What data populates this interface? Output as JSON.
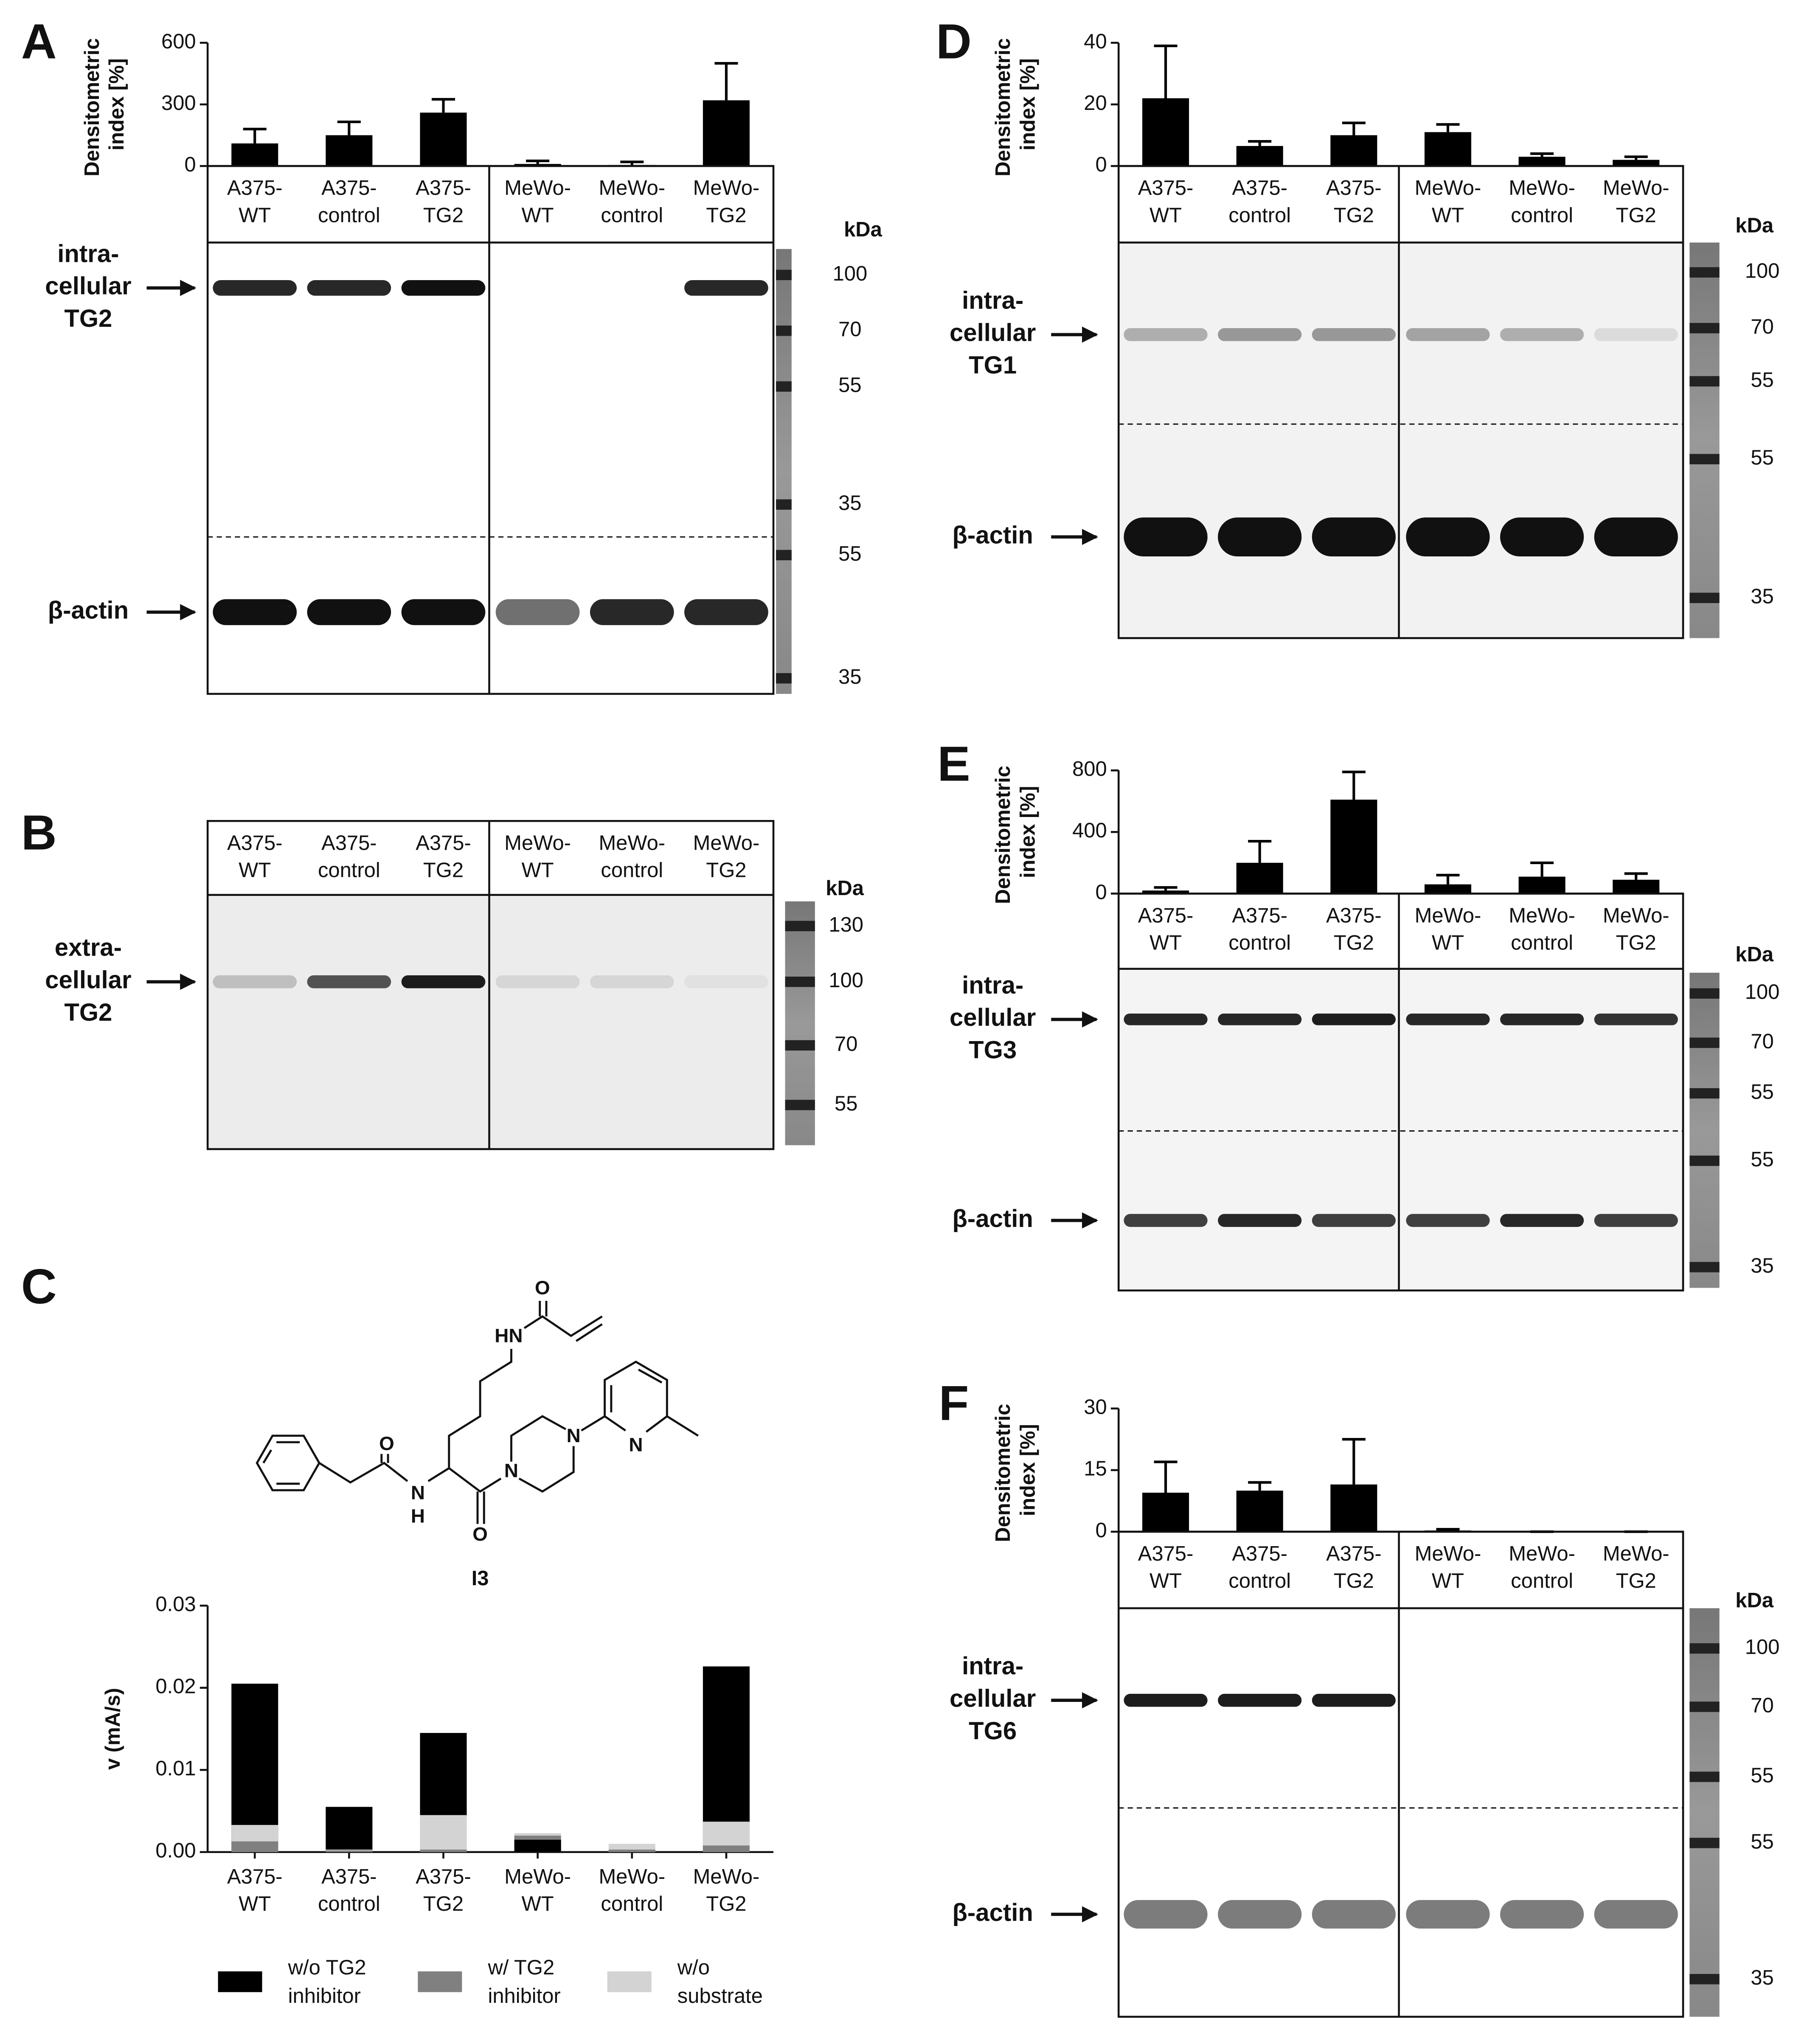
{
  "chart_data": [
    {
      "type": "bar",
      "y_label": "Densitometric index [%]",
      "categories": [
        "A375-WT",
        "A375-control",
        "A375-TG2",
        "MeWo-WT",
        "MeWo-control",
        "MeWo-TG2"
      ],
      "values": [
        110,
        150,
        260,
        10,
        5,
        320
      ],
      "errors": [
        70,
        65,
        65,
        15,
        15,
        180
      ],
      "color": "#000000",
      "ylim": [
        0,
        600
      ],
      "yticks": [
        0,
        300,
        600
      ]
    },
    {
      "type": "bar",
      "y_label": "v (mA/s)",
      "categories": [
        "A375-WT",
        "A375-control",
        "A375-TG2",
        "MeWo-WT",
        "MeWo-control",
        "MeWo-TG2"
      ],
      "series": [
        {
          "name": "w/o TG2 inhibitor",
          "color": "#000000",
          "values": [
            0.0205,
            0.0055,
            0.0145,
            0.0015,
            0,
            0.0226
          ]
        },
        {
          "name": "w/ TG2 inhibitor",
          "color": "#808080",
          "values": [
            0.0013,
            0.0002,
            0.0003,
            0.002,
            0.0003,
            0.0008
          ]
        },
        {
          "name": "w/o substrate",
          "color": "#d3d3d3",
          "values": [
            0.0033,
            0.0003,
            0.0045,
            0.0023,
            0.001,
            0.0037
          ]
        }
      ],
      "ylim": [
        0,
        0.03
      ],
      "yticks": [
        {
          "value": 0,
          "label": "0.00"
        },
        0.01,
        0.02,
        0.03
      ]
    },
    {
      "type": "bar",
      "y_label": "Densitometric index [%]",
      "categories": [
        "A375-WT",
        "A375-control",
        "A375-TG2",
        "MeWo-WT",
        "MeWo-control",
        "MeWo-TG2"
      ],
      "values": [
        22,
        6.5,
        10,
        11,
        3,
        2
      ],
      "errors": [
        17,
        1.5,
        4,
        2.5,
        1,
        1
      ],
      "color": "#000000",
      "ylim": [
        0,
        40
      ],
      "yticks": [
        0,
        20,
        40
      ]
    },
    {
      "type": "bar",
      "y_label": "Densitometric index [%]",
      "categories": [
        "A375-WT",
        "A375-control",
        "A375-TG2",
        "MeWo-WT",
        "MeWo-control",
        "MeWo-TG2"
      ],
      "values": [
        20,
        200,
        610,
        60,
        110,
        90
      ],
      "errors": [
        20,
        140,
        180,
        60,
        90,
        40
      ],
      "color": "#000000",
      "ylim": [
        0,
        800
      ],
      "yticks": [
        0,
        400,
        800
      ]
    },
    {
      "type": "bar",
      "y_label": "Densitometric index [%]",
      "categories": [
        "A375-WT",
        "A375-control",
        "A375-TG2",
        "MeWo-WT",
        "MeWo-control",
        "MeWo-TG2"
      ],
      "values": [
        9.5,
        10,
        11.5,
        0.3,
        0,
        0
      ],
      "errors": [
        7.5,
        2,
        11,
        0.3,
        0,
        0
      ],
      "color": "#000000",
      "ylim": [
        0,
        30
      ],
      "yticks": [
        0,
        15,
        30
      ]
    }
  ],
  "figure": {
    "letters": [
      "A",
      "B",
      "C",
      "D",
      "E",
      "F"
    ],
    "blots": [
      {
        "labels": [
          {
            "lines": [
              "intra-",
              "cellular",
              "TG2"
            ]
          },
          {
            "lines": [
              "β-actin"
            ]
          }
        ],
        "kda": "kDa",
        "markers": [
          100,
          70,
          55,
          35,
          55,
          35
        ]
      },
      {
        "lanes": [
          "A375-WT",
          "A375-control",
          "A375-TG2",
          "MeWo-WT",
          "MeWo-control",
          "MeWo-TG2"
        ],
        "labels": [
          {
            "lines": [
              "extra-",
              "cellular",
              "TG2"
            ]
          }
        ],
        "kda": "kDa",
        "markers": [
          130,
          100,
          70,
          55
        ]
      },
      {
        "labels": [
          {
            "lines": [
              "intra-",
              "cellular",
              "TG1"
            ]
          },
          {
            "lines": [
              "β-actin"
            ]
          }
        ],
        "kda": "kDa",
        "markers": [
          100,
          70,
          55,
          55,
          35
        ]
      },
      {
        "labels": [
          {
            "lines": [
              "intra-",
              "cellular",
              "TG3"
            ]
          },
          {
            "lines": [
              "β-actin"
            ]
          }
        ],
        "kda": "kDa",
        "markers": [
          100,
          70,
          55,
          55,
          35
        ]
      },
      {
        "labels": [
          {
            "lines": [
              "intra-",
              "cellular",
              "TG6"
            ]
          },
          {
            "lines": [
              "β-actin"
            ]
          }
        ],
        "kda": "kDa",
        "markers": [
          100,
          70,
          55,
          55,
          35
        ]
      }
    ],
    "structure": {
      "atoms": [
        "O",
        "HN",
        "O",
        "N",
        "H",
        "N",
        "N",
        "N",
        "O"
      ],
      "name": "I3"
    }
  }
}
